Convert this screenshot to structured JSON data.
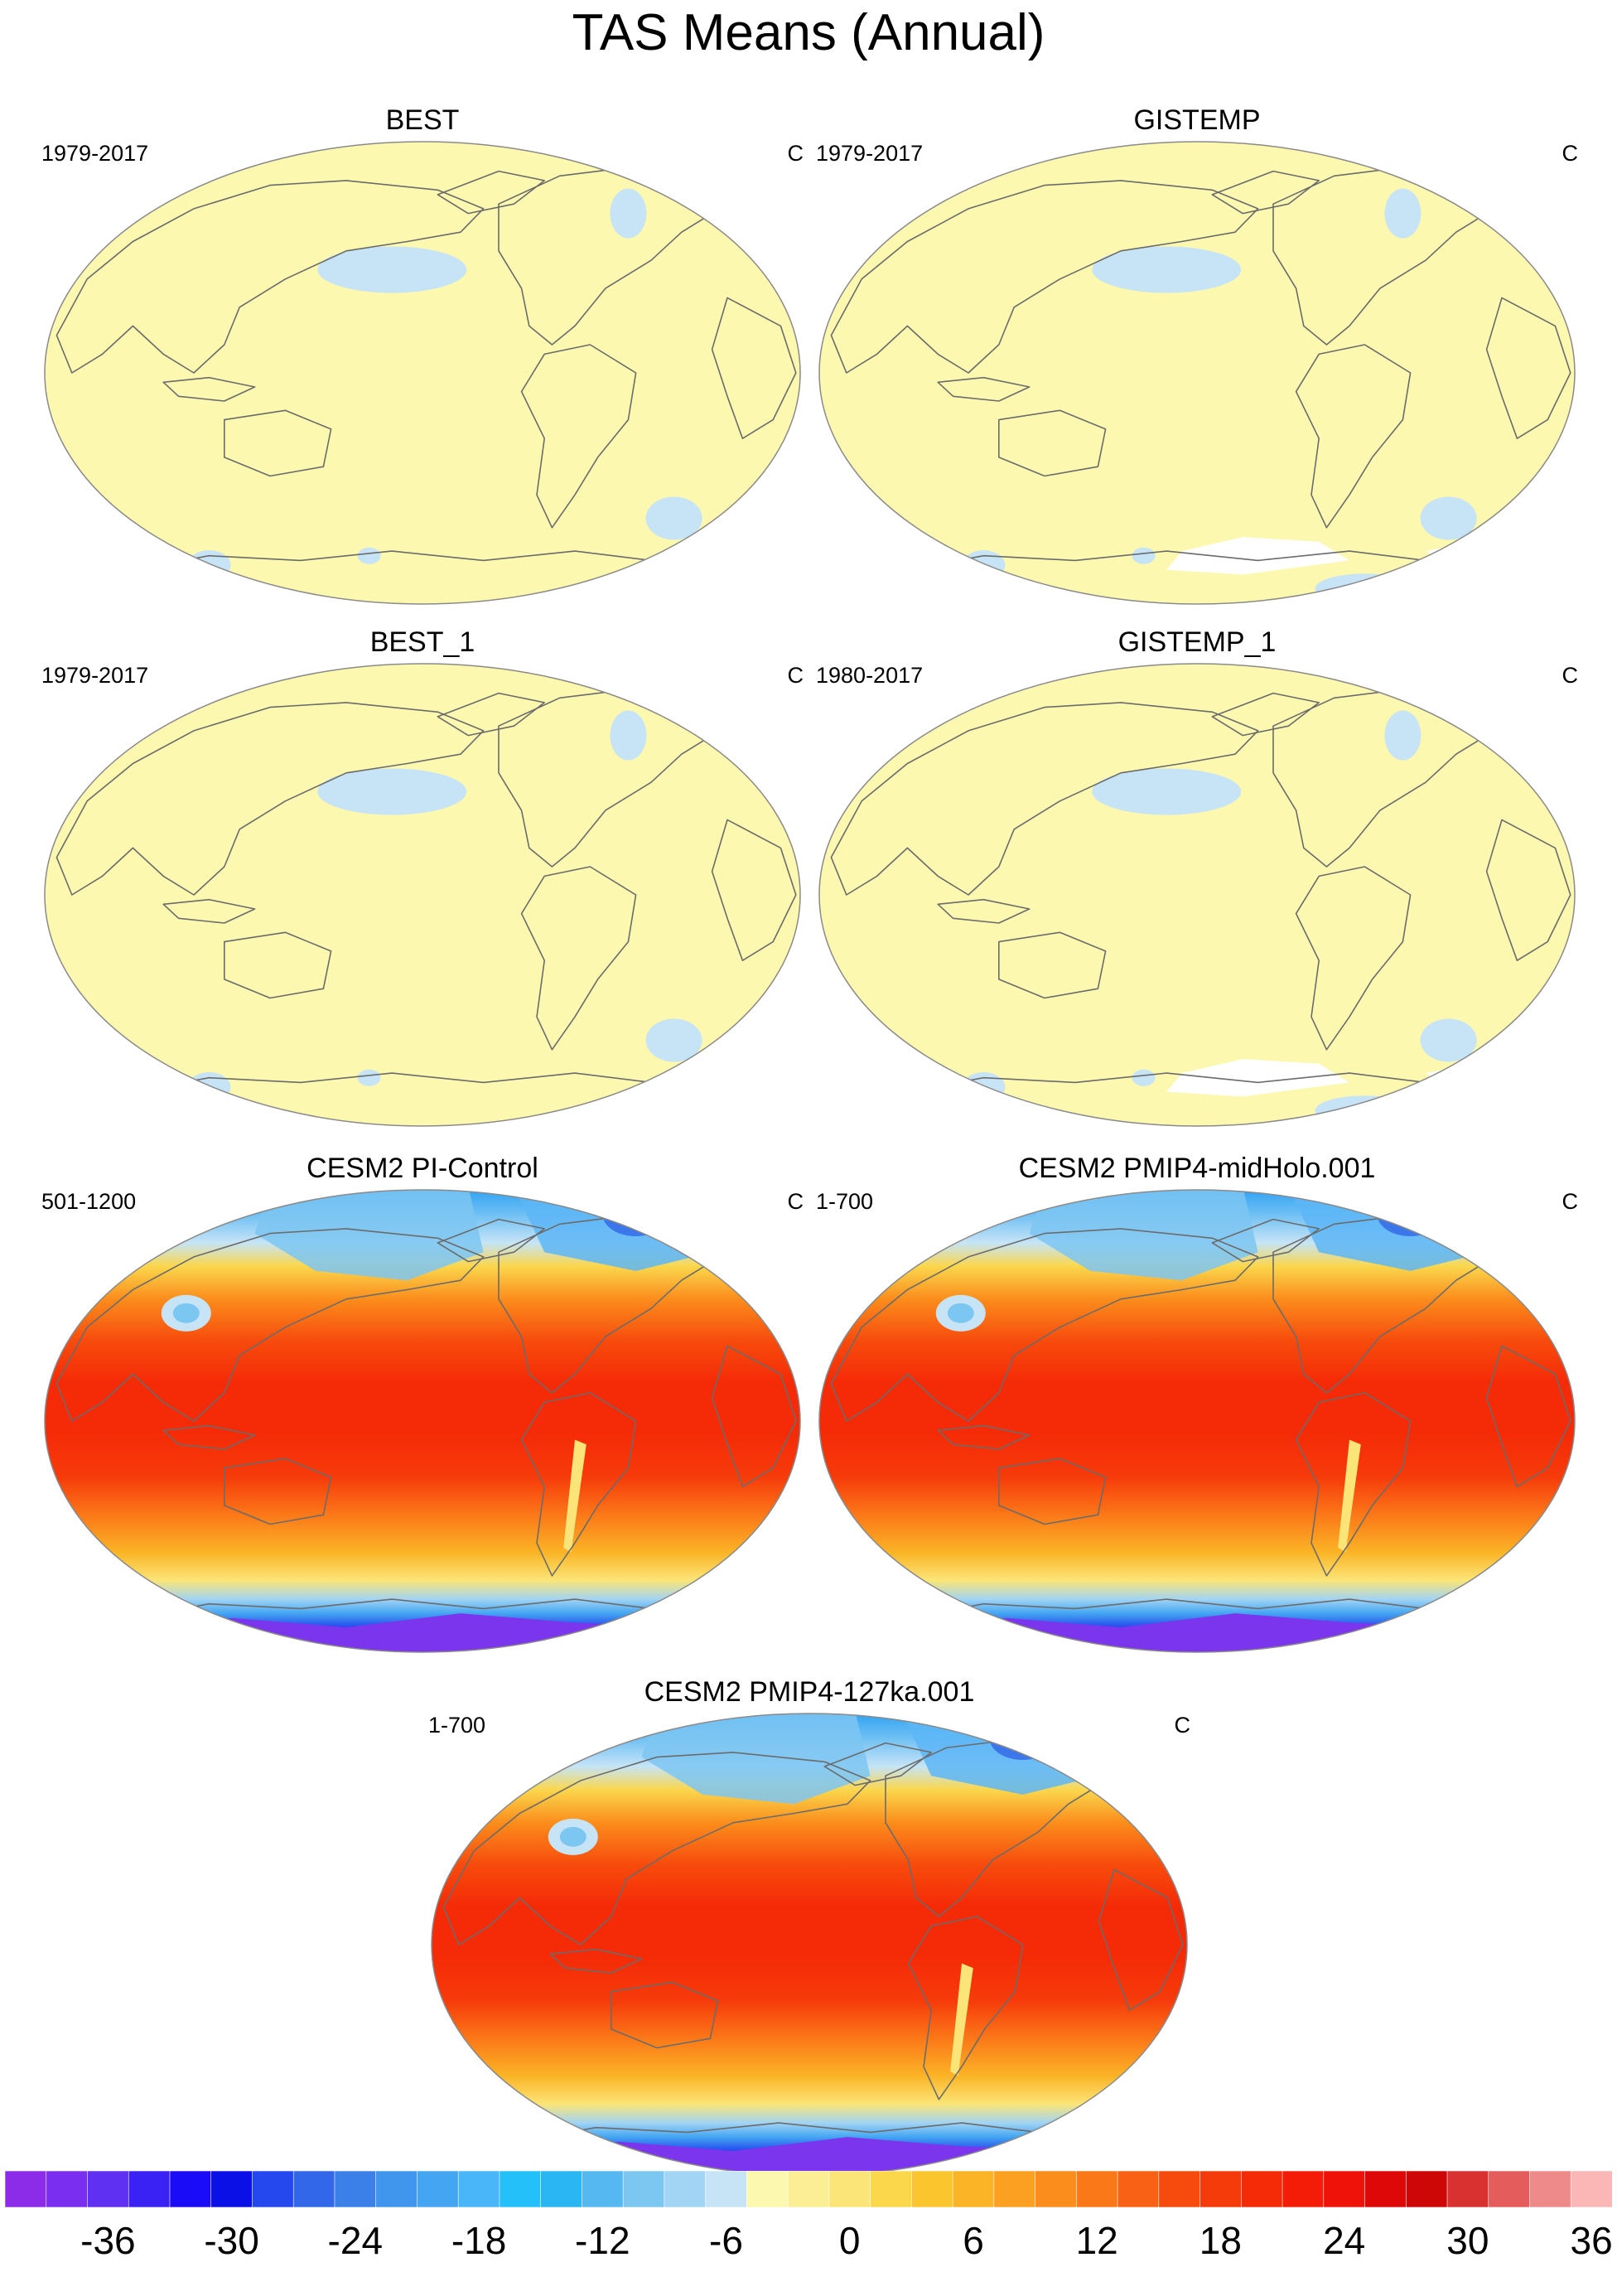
{
  "title": "TAS Means (Annual)",
  "colors": {
    "obs_fill": "#fdf8b0",
    "obs_cool_patch": "#c6e4f6",
    "missing": "#ffffff",
    "coastline": "#6b6b6b",
    "map_border": "#8a8a8a",
    "tropics": "#f52a06",
    "mid_lat": "#fb8d1c",
    "subtropics": "#f74b0d",
    "high_lat_cold": "#5db6f6",
    "ice_sheet": "#7b35ec"
  },
  "panels": [
    {
      "title": "BEST",
      "period": "1979-2017",
      "units": "C",
      "kind": "obs"
    },
    {
      "title": "GISTEMP",
      "period": "1979-2017",
      "units": "C",
      "kind": "obs_missing"
    },
    {
      "title": "BEST_1",
      "period": "1979-2017",
      "units": "C",
      "kind": "obs"
    },
    {
      "title": "GISTEMP_1",
      "period": "1980-2017",
      "units": "C",
      "kind": "obs_missing"
    },
    {
      "title": "CESM2 PI-Control",
      "period": "501-1200",
      "units": "C",
      "kind": "model"
    },
    {
      "title": "CESM2 PMIP4-midHolo.001",
      "period": "1-700",
      "units": "C",
      "kind": "model"
    },
    {
      "title": "CESM2 PMIP4-127ka.001",
      "period": "1-700",
      "units": "C",
      "kind": "model"
    }
  ],
  "colorbar": {
    "tick_labels": [
      "-36",
      "-30",
      "-24",
      "-18",
      "-12",
      "-6",
      "0",
      "6",
      "12",
      "18",
      "24",
      "30",
      "36"
    ],
    "first_tick_box": 2,
    "tick_box_step": 3,
    "colors": [
      "#8c2be8",
      "#7a2ff0",
      "#5f2ff2",
      "#3a22f4",
      "#1a0cf6",
      "#0a10e6",
      "#2448ee",
      "#3167e8",
      "#3b80e8",
      "#3f96ec",
      "#44a6f2",
      "#48b6f8",
      "#23c0fa",
      "#2ab6f2",
      "#56b8f0",
      "#7cc6f2",
      "#a2d4f4",
      "#c6e4f6",
      "#fdf8b0",
      "#fcee94",
      "#fbe578",
      "#fbd74c",
      "#fbc52e",
      "#fbb426",
      "#fba020",
      "#fb8d1c",
      "#fb7818",
      "#f96214",
      "#f74b0d",
      "#f63b0a",
      "#f52a06",
      "#f41c06",
      "#ee1208",
      "#de0808",
      "#cd0606",
      "#d93030",
      "#e45c5c",
      "#ef8a8a",
      "#fbb6b6"
    ]
  }
}
